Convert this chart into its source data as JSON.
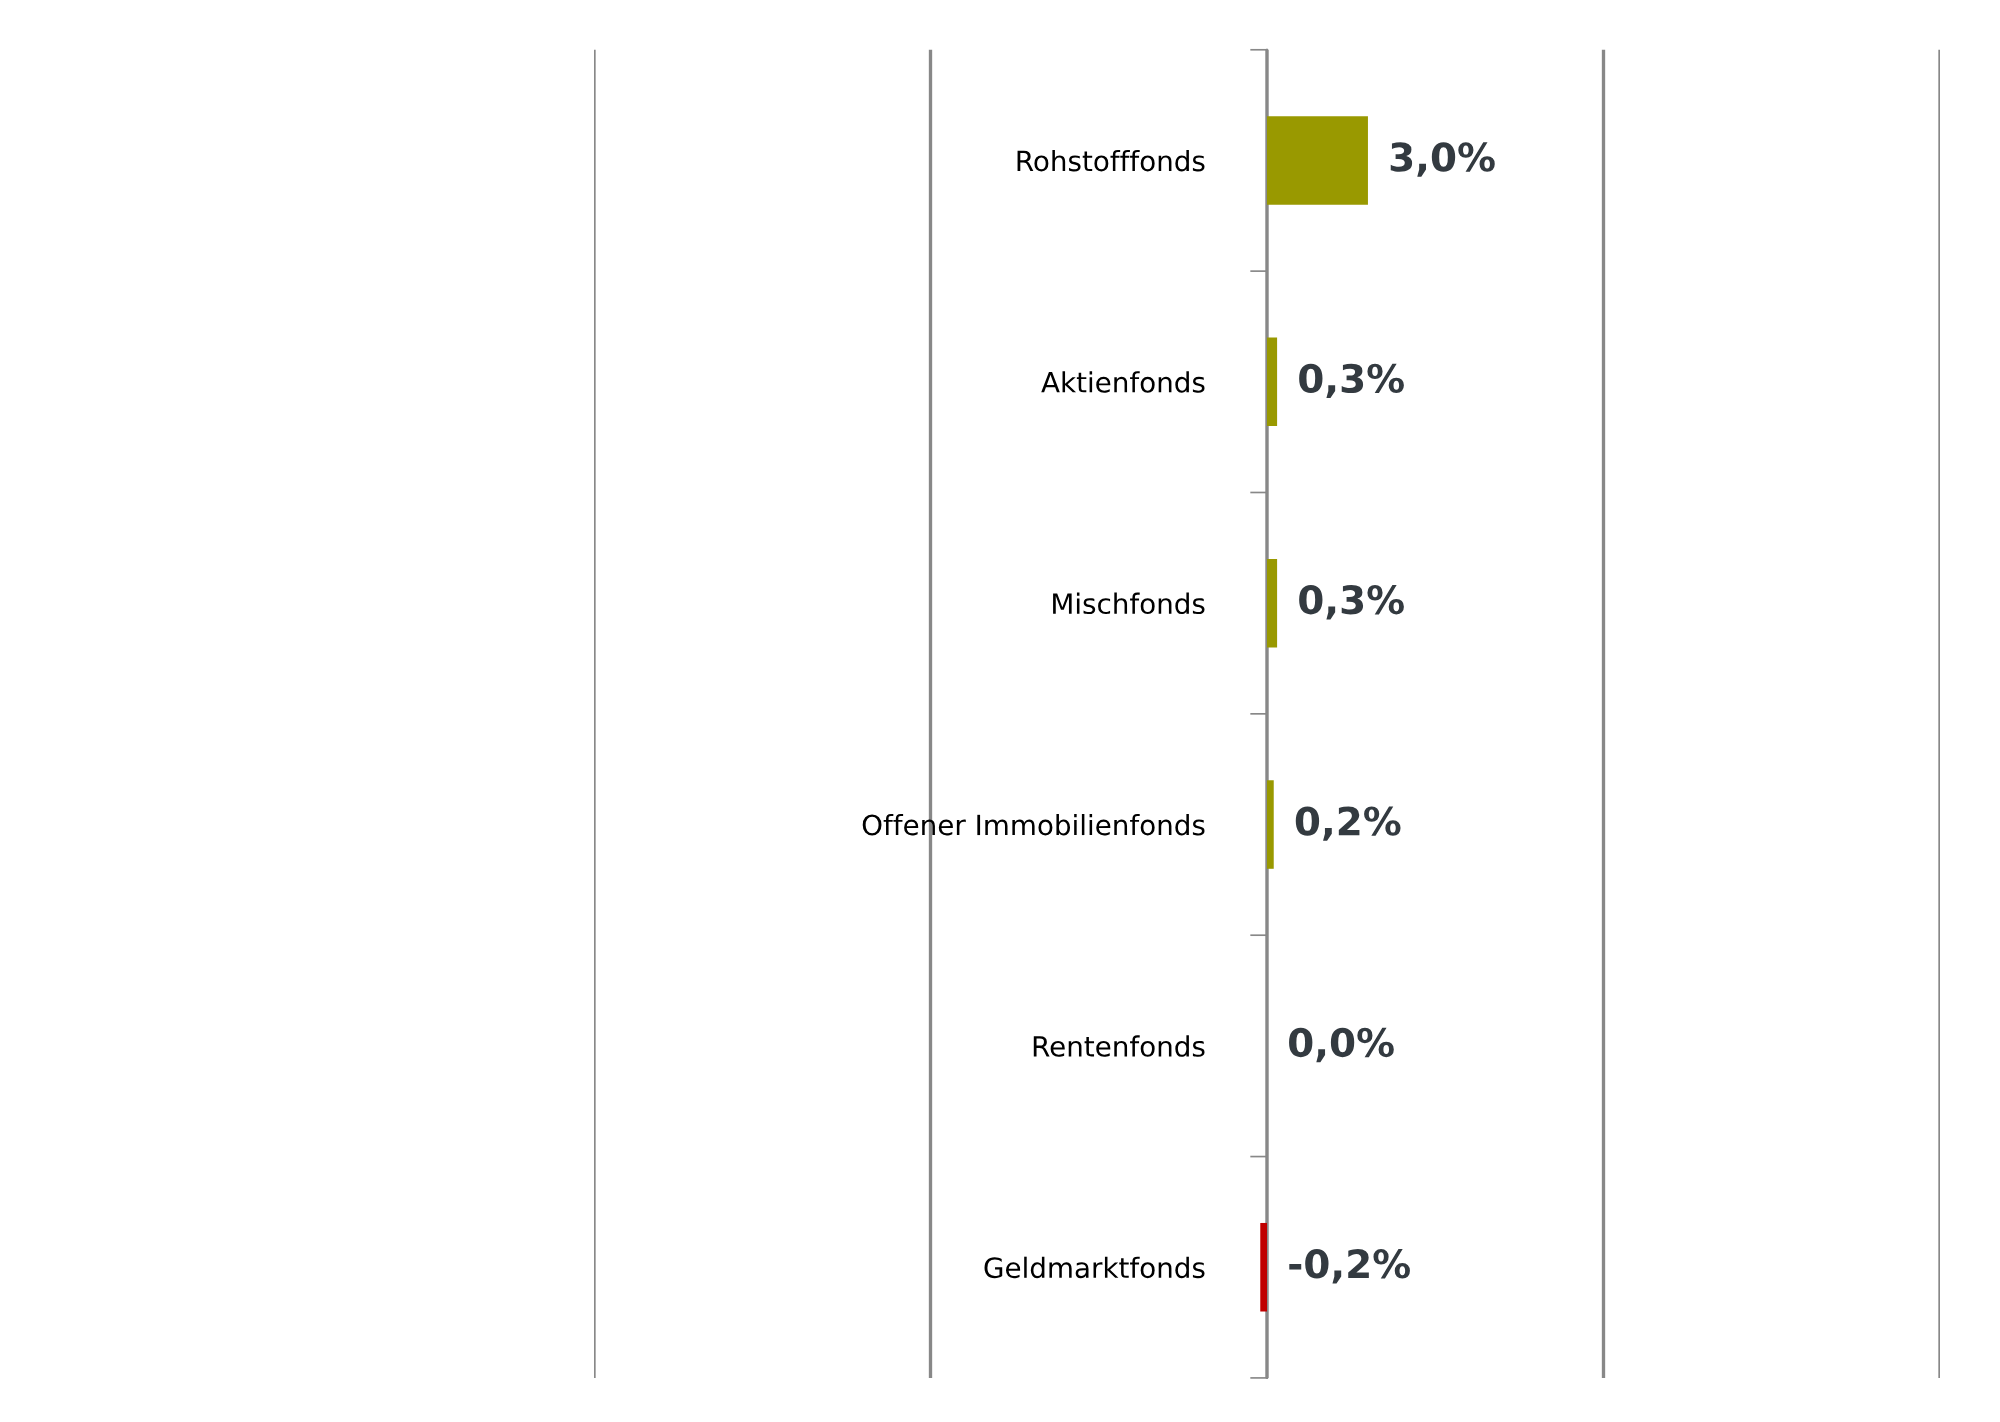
{
  "chart_data": {
    "type": "bar",
    "orientation": "horizontal",
    "categories": [
      "Rohstofffonds",
      "Aktienfonds",
      "Mischfonds",
      "Offener Immobilienfonds",
      "Rentenfonds",
      "Geldmarktfonds"
    ],
    "values": [
      3.0,
      0.3,
      0.3,
      0.2,
      0.0,
      -0.2
    ],
    "colors": [
      "#999900",
      "#999900",
      "#999900",
      "#999900",
      "#999900",
      "#c00000"
    ],
    "value_labels": [
      "3,0%",
      "0,3%",
      "0,3%",
      "0,2%",
      "0,0%",
      "-0,2%"
    ],
    "xlim": [
      -20,
      20
    ],
    "xticks": [
      {
        "value": -20,
        "label": null
      },
      {
        "value": -10,
        "label": null
      },
      {
        "value": 0,
        "label": null
      },
      {
        "value": 10,
        "label": null
      },
      {
        "value": 20,
        "label": null
      }
    ],
    "grid": "x",
    "tick_labels": "y"
  }
}
